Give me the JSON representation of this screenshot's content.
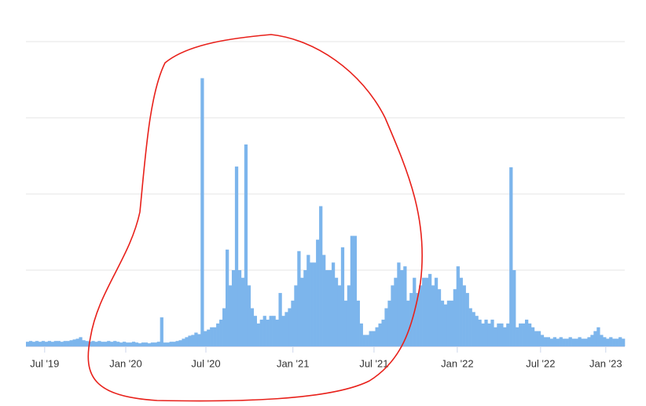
{
  "chart_data": {
    "type": "bar",
    "color": "#7cb5ec",
    "xlim": [
      0,
      192
    ],
    "xticks": [
      {
        "value": 6,
        "label": "Jul '19"
      },
      {
        "value": 32,
        "label": "Jan '20"
      },
      {
        "value": 57.7,
        "label": "Jul '20"
      },
      {
        "value": 85.6,
        "label": "Jan '21"
      },
      {
        "value": 111.6,
        "label": "Jul '21"
      },
      {
        "value": 138.3,
        "label": "Jan '22"
      },
      {
        "value": 165,
        "label": "Jul '22"
      },
      {
        "value": 185.9,
        "label": "Jan '23"
      }
    ],
    "ylim": [
      0,
      4
    ],
    "yticks": [
      0,
      1,
      2,
      3,
      4
    ],
    "show_ytick_labels": false,
    "grid": true,
    "values": [
      0.06,
      0.07,
      0.06,
      0.07,
      0.06,
      0.07,
      0.06,
      0.07,
      0.06,
      0.07,
      0.07,
      0.06,
      0.07,
      0.07,
      0.08,
      0.09,
      0.1,
      0.12,
      0.08,
      0.07,
      0.06,
      0.07,
      0.06,
      0.07,
      0.06,
      0.06,
      0.07,
      0.06,
      0.07,
      0.06,
      0.05,
      0.06,
      0.05,
      0.05,
      0.06,
      0.05,
      0.04,
      0.05,
      0.05,
      0.04,
      0.05,
      0.05,
      0.06,
      0.38,
      0.05,
      0.05,
      0.06,
      0.06,
      0.07,
      0.08,
      0.1,
      0.12,
      0.14,
      0.15,
      0.18,
      0.16,
      3.52,
      0.2,
      0.22,
      0.25,
      0.25,
      0.3,
      0.35,
      0.5,
      1.27,
      0.8,
      1.0,
      2.36,
      1.0,
      0.9,
      2.65,
      0.8,
      0.5,
      0.4,
      0.3,
      0.35,
      0.4,
      0.35,
      0.4,
      0.4,
      0.35,
      0.7,
      0.4,
      0.45,
      0.5,
      0.6,
      0.8,
      1.25,
      0.9,
      1.0,
      1.2,
      1.1,
      1.1,
      1.4,
      1.84,
      1.2,
      1.0,
      1.0,
      1.1,
      0.9,
      0.8,
      1.3,
      0.6,
      0.8,
      1.45,
      1.45,
      0.6,
      0.3,
      0.15,
      0.15,
      0.2,
      0.2,
      0.25,
      0.3,
      0.35,
      0.5,
      0.6,
      0.8,
      0.9,
      1.1,
      1.0,
      1.05,
      0.6,
      0.7,
      0.9,
      0.7,
      0.8,
      0.9,
      0.9,
      0.95,
      0.8,
      0.9,
      0.75,
      0.6,
      0.55,
      0.6,
      0.6,
      0.75,
      1.05,
      0.9,
      0.8,
      0.7,
      0.5,
      0.45,
      0.4,
      0.35,
      0.3,
      0.35,
      0.3,
      0.35,
      0.25,
      0.3,
      0.3,
      0.25,
      0.3,
      2.35,
      1.0,
      0.25,
      0.3,
      0.3,
      0.35,
      0.3,
      0.25,
      0.2,
      0.2,
      0.15,
      0.12,
      0.12,
      0.1,
      0.12,
      0.1,
      0.12,
      0.1,
      0.1,
      0.12,
      0.1,
      0.1,
      0.12,
      0.1,
      0.1,
      0.12,
      0.15,
      0.2,
      0.25,
      0.15,
      0.12,
      0.1,
      0.12,
      0.1,
      0.1,
      0.12,
      0.1
    ]
  }
}
